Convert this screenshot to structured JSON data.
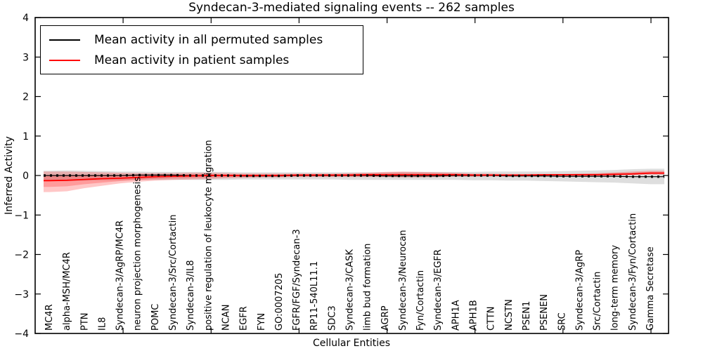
{
  "chart_data": {
    "type": "line",
    "title": "Syndecan-3-mediated signaling events -- 262 samples",
    "xlabel": "Cellular Entities",
    "ylabel": "Inferred Activity",
    "ylim": [
      -4,
      4
    ],
    "yticks": [
      4,
      3,
      2,
      1,
      0,
      -1,
      -2,
      -3,
      -4
    ],
    "x_range": [
      0,
      36
    ],
    "x_major_ticks": [
      5,
      10,
      15,
      20,
      25,
      30,
      35
    ],
    "grid": false,
    "legend_position": "upper left",
    "background_color": "#ffffff",
    "categories": [
      "MC4R",
      "alpha-MSH/MC4R",
      "PTN",
      "IL8",
      "Syndecan-3/AgRP/MC4R",
      "neuron projection morphogenesis",
      "POMC",
      "Syndecan-3/Src/Cortactin",
      "Syndecan-3/IL8",
      "positive regulation of leukocyte migration",
      "NCAN",
      "EGFR",
      "FYN",
      "GO:0007205",
      "FGFR/FGF/Syndecan-3",
      "RP11-540L11.1",
      "SDC3",
      "Syndecan-3/CASK",
      "limb bud formation",
      "AGRP",
      "Syndecan-3/Neurocan",
      "Fyn/Cortactin",
      "Syndecan-3/EGFR",
      "APH1A",
      "APH1B",
      "CTTN",
      "NCSTN",
      "PSEN1",
      "PSENEN",
      "SRC",
      "Syndecan-3/AgRP",
      "Src/Cortactin",
      "long-term memory",
      "Syndecan-3/Fyn/Cortactin",
      "Gamma Secretase"
    ],
    "series": [
      {
        "name": "Mean activity in all permuted samples",
        "color": "#000000",
        "band_color": "rgba(0,0,0,0.13)",
        "values": [
          0,
          0,
          0,
          0,
          0,
          0.01,
          0.01,
          0.01,
          0,
          0,
          0,
          -0.01,
          -0.01,
          -0.01,
          0,
          0,
          0,
          0,
          0,
          -0.01,
          -0.01,
          -0.01,
          -0.01,
          0,
          0,
          0,
          -0.01,
          -0.01,
          -0.01,
          -0.02,
          -0.02,
          -0.02,
          -0.02,
          -0.03,
          -0.03
        ],
        "band_upper": [
          0.12,
          0.13,
          0.12,
          0.11,
          0.1,
          0.1,
          0.09,
          0.09,
          0.09,
          0.09,
          0.09,
          0.08,
          0.08,
          0.08,
          0.08,
          0.08,
          0.08,
          0.08,
          0.08,
          0.08,
          0.09,
          0.09,
          0.09,
          0.09,
          0.09,
          0.1,
          0.1,
          0.1,
          0.1,
          0.11,
          0.12,
          0.13,
          0.14,
          0.16,
          0.17
        ],
        "band_lower": [
          -0.13,
          -0.14,
          -0.13,
          -0.12,
          -0.12,
          -0.11,
          -0.11,
          -0.11,
          -0.11,
          -0.11,
          -0.11,
          -0.1,
          -0.1,
          -0.1,
          -0.1,
          -0.1,
          -0.1,
          -0.11,
          -0.11,
          -0.11,
          -0.11,
          -0.11,
          -0.11,
          -0.11,
          -0.12,
          -0.12,
          -0.13,
          -0.13,
          -0.14,
          -0.15,
          -0.16,
          -0.17,
          -0.18,
          -0.2,
          -0.22
        ]
      },
      {
        "name": "Mean activity in patient samples",
        "color": "#ff0000",
        "band_color": "rgba(255,0,0,0.22)",
        "values": [
          -0.13,
          -0.12,
          -0.1,
          -0.08,
          -0.07,
          -0.05,
          -0.03,
          -0.02,
          -0.01,
          0,
          0,
          0,
          0,
          0,
          0.01,
          0.01,
          0.01,
          0.01,
          0.02,
          0.02,
          0.02,
          0.02,
          0.02,
          0.02,
          0.01,
          0.01,
          0.01,
          0.01,
          0.02,
          0.02,
          0.02,
          0.02,
          0.03,
          0.04,
          0.06
        ],
        "band_upper": [
          0.1,
          0.1,
          0.09,
          0.08,
          0.07,
          0.06,
          0.06,
          0.06,
          0.07,
          0.07,
          0.06,
          0.05,
          0.05,
          0.05,
          0.05,
          0.05,
          0.05,
          0.06,
          0.07,
          0.09,
          0.1,
          0.09,
          0.08,
          0.07,
          0.05,
          0.05,
          0.04,
          0.04,
          0.04,
          0.04,
          0.05,
          0.06,
          0.08,
          0.1,
          0.12
        ],
        "band_lower": [
          -0.42,
          -0.4,
          -0.32,
          -0.26,
          -0.2,
          -0.16,
          -0.13,
          -0.11,
          -0.1,
          -0.09,
          -0.07,
          -0.06,
          -0.05,
          -0.05,
          -0.04,
          -0.04,
          -0.04,
          -0.04,
          -0.04,
          -0.04,
          -0.05,
          -0.05,
          -0.04,
          -0.03,
          -0.03,
          -0.02,
          -0.02,
          -0.02,
          -0.02,
          -0.02,
          -0.01,
          -0.01,
          0,
          0.01,
          0.02
        ]
      }
    ]
  }
}
